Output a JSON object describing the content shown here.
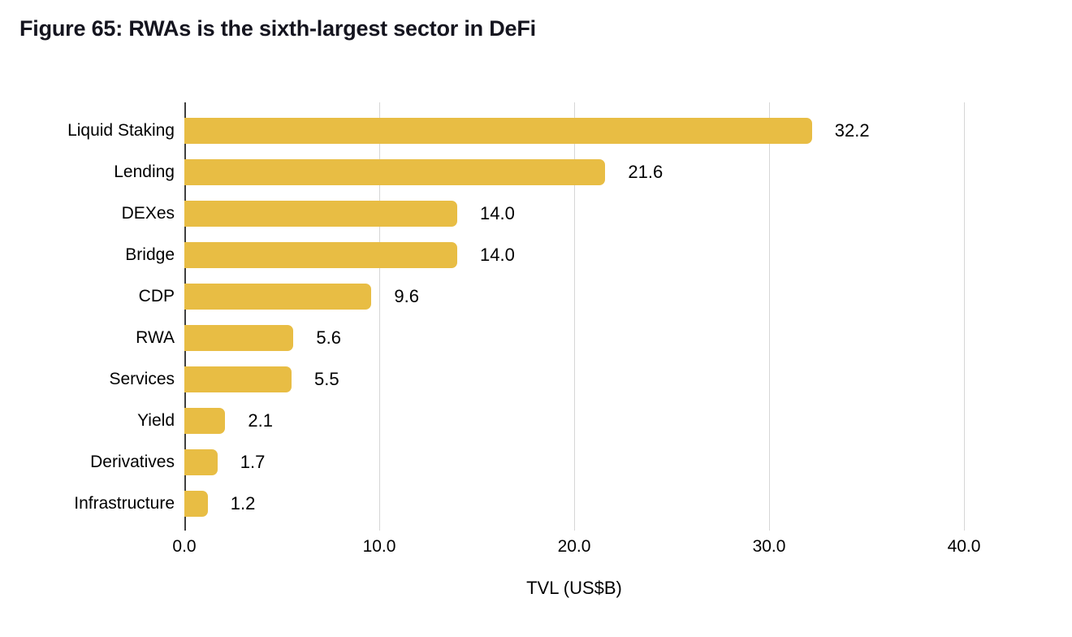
{
  "figure": {
    "title": "Figure 65: RWAs is the sixth-largest sector in DeFi",
    "title_color": "#15151f"
  },
  "chart_data": {
    "type": "bar",
    "orientation": "horizontal",
    "title": "Figure 65: RWAs is the sixth-largest sector in DeFi",
    "categories": [
      "Liquid Staking",
      "Lending",
      "DEXes",
      "Bridge",
      "CDP",
      "RWA",
      "Services",
      "Yield",
      "Derivatives",
      "Infrastructure"
    ],
    "values": [
      32.2,
      21.6,
      14.0,
      14.0,
      9.6,
      5.6,
      5.5,
      2.1,
      1.7,
      1.2
    ],
    "value_labels": [
      "32.2",
      "21.6",
      "14.0",
      "14.0",
      "9.6",
      "5.6",
      "5.5",
      "2.1",
      "1.7",
      "1.2"
    ],
    "xlabel": "TVL (US$B)",
    "ylabel": "",
    "xlim": [
      0,
      44
    ],
    "xticks": [
      0,
      10,
      20,
      30,
      40
    ],
    "xtick_labels": [
      "0.0",
      "10.0",
      "20.0",
      "30.0",
      "40.0"
    ],
    "grid": "vertical gridlines on, drawn behind bars",
    "legend": "none",
    "bar_color": "#e8bd44",
    "gridline_color": "#d6d6d6",
    "axis_line_color": "#3f3f3f",
    "text_color": "#000000"
  }
}
